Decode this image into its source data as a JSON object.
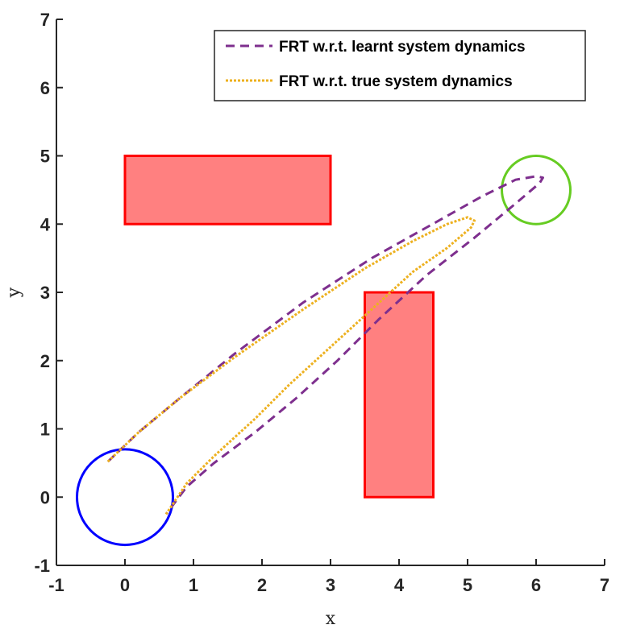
{
  "chart_data": {
    "type": "line",
    "xlabel": "x",
    "ylabel": "y",
    "xlim": [
      -1,
      7
    ],
    "ylim": [
      -1,
      7
    ],
    "xticks": [
      "-1",
      "0",
      "1",
      "2",
      "3",
      "4",
      "5",
      "6",
      "7"
    ],
    "yticks": [
      "-1",
      "0",
      "1",
      "2",
      "3",
      "4",
      "5",
      "6",
      "7"
    ],
    "legend_position": "top-right",
    "series": [
      {
        "name": "FRT w.r.t. learnt system dynamics",
        "color": "#7E2F8E",
        "style": "dashed",
        "x": [
          -0.25,
          0.2,
          0.8,
          1.6,
          2.6,
          3.6,
          4.4,
          5.2,
          5.7,
          6.0,
          6.1,
          6.05,
          5.7,
          5.1,
          4.4,
          3.7,
          3.1,
          2.5,
          1.9,
          1.3,
          0.9,
          0.6
        ],
        "y": [
          0.52,
          0.95,
          1.45,
          2.1,
          2.85,
          3.5,
          3.95,
          4.4,
          4.65,
          4.7,
          4.68,
          4.6,
          4.3,
          3.8,
          3.25,
          2.6,
          2.0,
          1.45,
          0.95,
          0.5,
          0.15,
          -0.25
        ]
      },
      {
        "name": "FRT w.r.t. true system dynamics",
        "color": "#EDB120",
        "style": "dotted",
        "x": [
          -0.25,
          0.2,
          0.8,
          1.6,
          2.6,
          3.5,
          4.2,
          4.7,
          5.0,
          5.1,
          5.05,
          4.7,
          4.2,
          3.6,
          3.0,
          2.4,
          1.9,
          1.3,
          0.9,
          0.6
        ],
        "y": [
          0.52,
          0.95,
          1.45,
          2.05,
          2.75,
          3.35,
          3.75,
          4.0,
          4.1,
          4.05,
          3.95,
          3.65,
          3.3,
          2.75,
          2.2,
          1.65,
          1.15,
          0.6,
          0.2,
          -0.25
        ]
      }
    ],
    "shapes": {
      "obstacles": [
        {
          "x": 0,
          "y": 4,
          "width": 3,
          "height": 1,
          "fill": "#FF8080",
          "edge": "#FF0000"
        },
        {
          "x": 3.5,
          "y": 0,
          "width": 1,
          "height": 3,
          "fill": "#FF8080",
          "edge": "#FF0000"
        }
      ],
      "start_circle": {
        "cx": 0,
        "cy": 0,
        "r": 0.7,
        "color": "#0000FF"
      },
      "goal_circle": {
        "cx": 6,
        "cy": 4.5,
        "r": 0.5,
        "color": "#66CC22"
      }
    }
  }
}
